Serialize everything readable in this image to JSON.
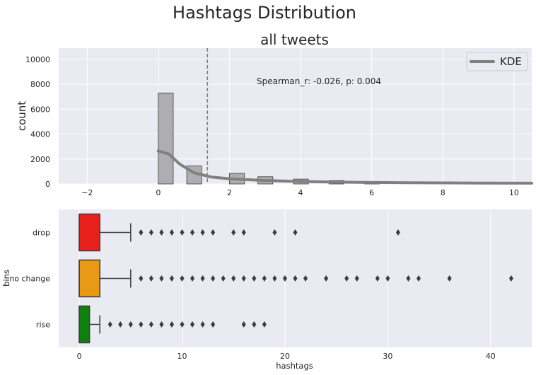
{
  "figure": {
    "suptitle": "Hashtags Distribution"
  },
  "chart_data": [
    {
      "type": "bar",
      "title": "all tweets",
      "xlabel": "",
      "ylabel": "count",
      "xlim": [
        -2.8,
        10.5
      ],
      "ylim": [
        0,
        10900
      ],
      "x_ticks": [
        -2,
        0,
        2,
        4,
        6,
        8,
        10
      ],
      "y_ticks": [
        0,
        2000,
        4000,
        6000,
        8000,
        10000
      ],
      "grid": true,
      "bars": [
        {
          "x0": 0.0,
          "x1": 0.42,
          "value": 7300
        },
        {
          "x0": 0.8,
          "x1": 1.22,
          "value": 1450
        },
        {
          "x0": 2.0,
          "x1": 2.42,
          "value": 850
        },
        {
          "x0": 2.8,
          "x1": 3.22,
          "value": 580
        },
        {
          "x0": 3.8,
          "x1": 4.22,
          "value": 390
        },
        {
          "x0": 4.8,
          "x1": 5.22,
          "value": 270
        },
        {
          "x0": 5.8,
          "x1": 6.22,
          "value": 180
        }
      ],
      "mean_line_x": 1.38,
      "annotation": "Spearman_r: -0.026, p: 0.004",
      "legend": {
        "entries": [
          "KDE"
        ],
        "position": "top-right"
      },
      "kde": {
        "name": "KDE",
        "x": [
          0,
          0.3,
          0.6,
          1.0,
          1.5,
          2.0,
          3.0,
          4.0,
          5.0,
          6.0,
          7.0,
          8.0,
          9.0,
          10.5
        ],
        "y": [
          2650,
          2400,
          1600,
          900,
          550,
          420,
          280,
          200,
          150,
          120,
          100,
          85,
          75,
          65
        ]
      },
      "colors": {
        "bar_fill": "#aeaeb2",
        "kde": "#808080",
        "mean_line": "#808080"
      }
    },
    {
      "type": "box",
      "xlabel": "hashtags",
      "ylabel": "bins",
      "xlim": [
        -2,
        44
      ],
      "x_ticks": [
        0,
        10,
        20,
        30,
        40
      ],
      "grid": true,
      "categories": [
        "drop",
        "no change",
        "rise"
      ],
      "boxes": [
        {
          "name": "drop",
          "color": "#e8211c",
          "q1": 0,
          "median": 0,
          "q3": 2,
          "whisker_low": 0,
          "whisker_high": 5,
          "outliers": [
            6,
            7,
            8,
            9,
            10,
            11,
            12,
            13,
            15,
            16,
            19,
            21,
            31
          ]
        },
        {
          "name": "no change",
          "color": "#e89a17",
          "q1": 0,
          "median": 0,
          "q3": 2,
          "whisker_low": 0,
          "whisker_high": 5,
          "outliers": [
            6,
            7,
            8,
            9,
            10,
            11,
            12,
            13,
            14,
            15,
            16,
            17,
            18,
            19,
            20,
            21,
            22,
            24,
            26,
            27,
            29,
            30,
            32,
            33,
            36,
            42
          ]
        },
        {
          "name": "rise",
          "color": "#0f800f",
          "q1": 0,
          "median": 0,
          "q3": 1,
          "whisker_low": 0,
          "whisker_high": 2,
          "outliers": [
            3,
            4,
            5,
            6,
            7,
            8,
            9,
            10,
            11,
            12,
            13,
            16,
            17,
            18
          ]
        }
      ]
    }
  ]
}
